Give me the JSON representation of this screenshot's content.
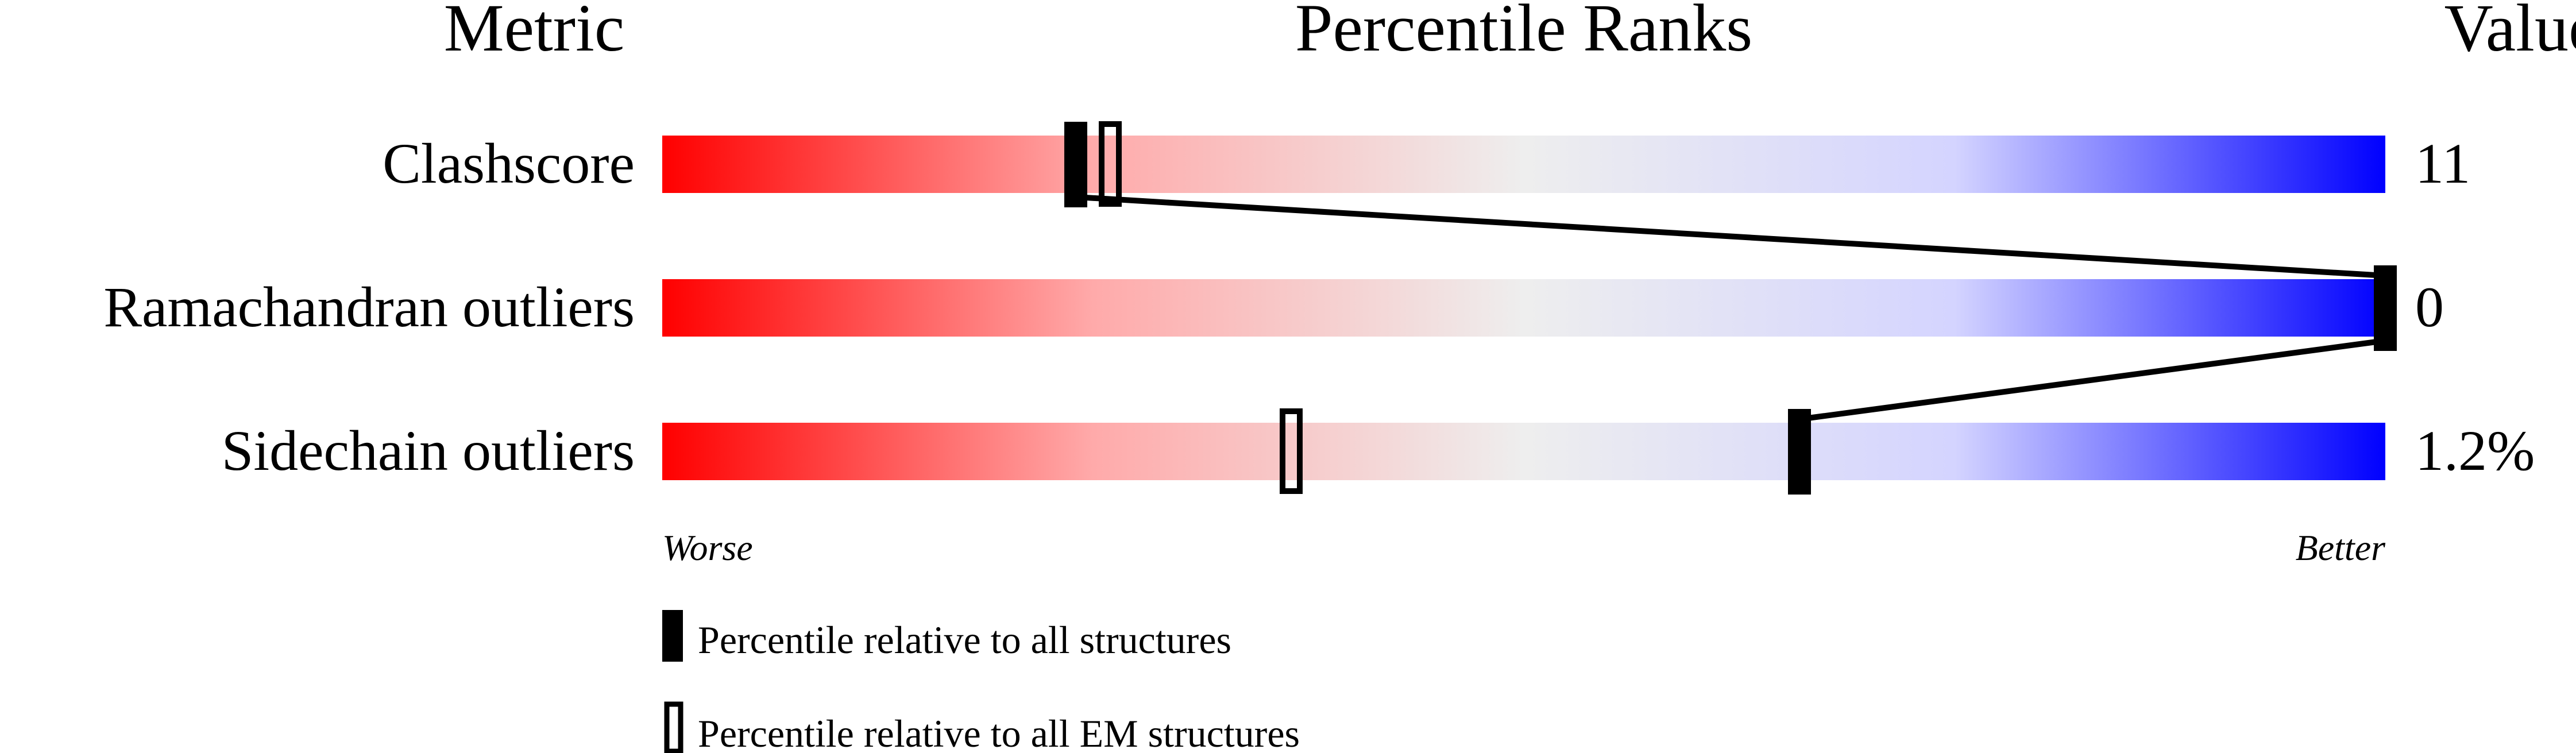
{
  "chart_data": {
    "type": "percentile-bar",
    "headers": {
      "metric": "Metric",
      "ranks": "Percentile Ranks",
      "value": "Value"
    },
    "xlim": [
      0,
      100
    ],
    "axis_labels": {
      "left": "Worse",
      "right": "Better"
    },
    "colors": {
      "worse": "#ff0000",
      "middle": "#eeeeee",
      "better": "#0000ff",
      "marker": "#000000"
    },
    "metrics": [
      {
        "name": "Clashscore",
        "value": "11",
        "percentile_all": 24,
        "percentile_em": 26
      },
      {
        "name": "Ramachandran outliers",
        "value": "0",
        "percentile_all": 100,
        "percentile_em": 100
      },
      {
        "name": "Sidechain outliers",
        "value": "1.2%",
        "percentile_all": 66,
        "percentile_em": 36.5
      }
    ],
    "legend": [
      {
        "marker": "filled",
        "label": "Percentile relative to all structures"
      },
      {
        "marker": "hollow",
        "label": "Percentile relative to all EM structures"
      }
    ]
  }
}
